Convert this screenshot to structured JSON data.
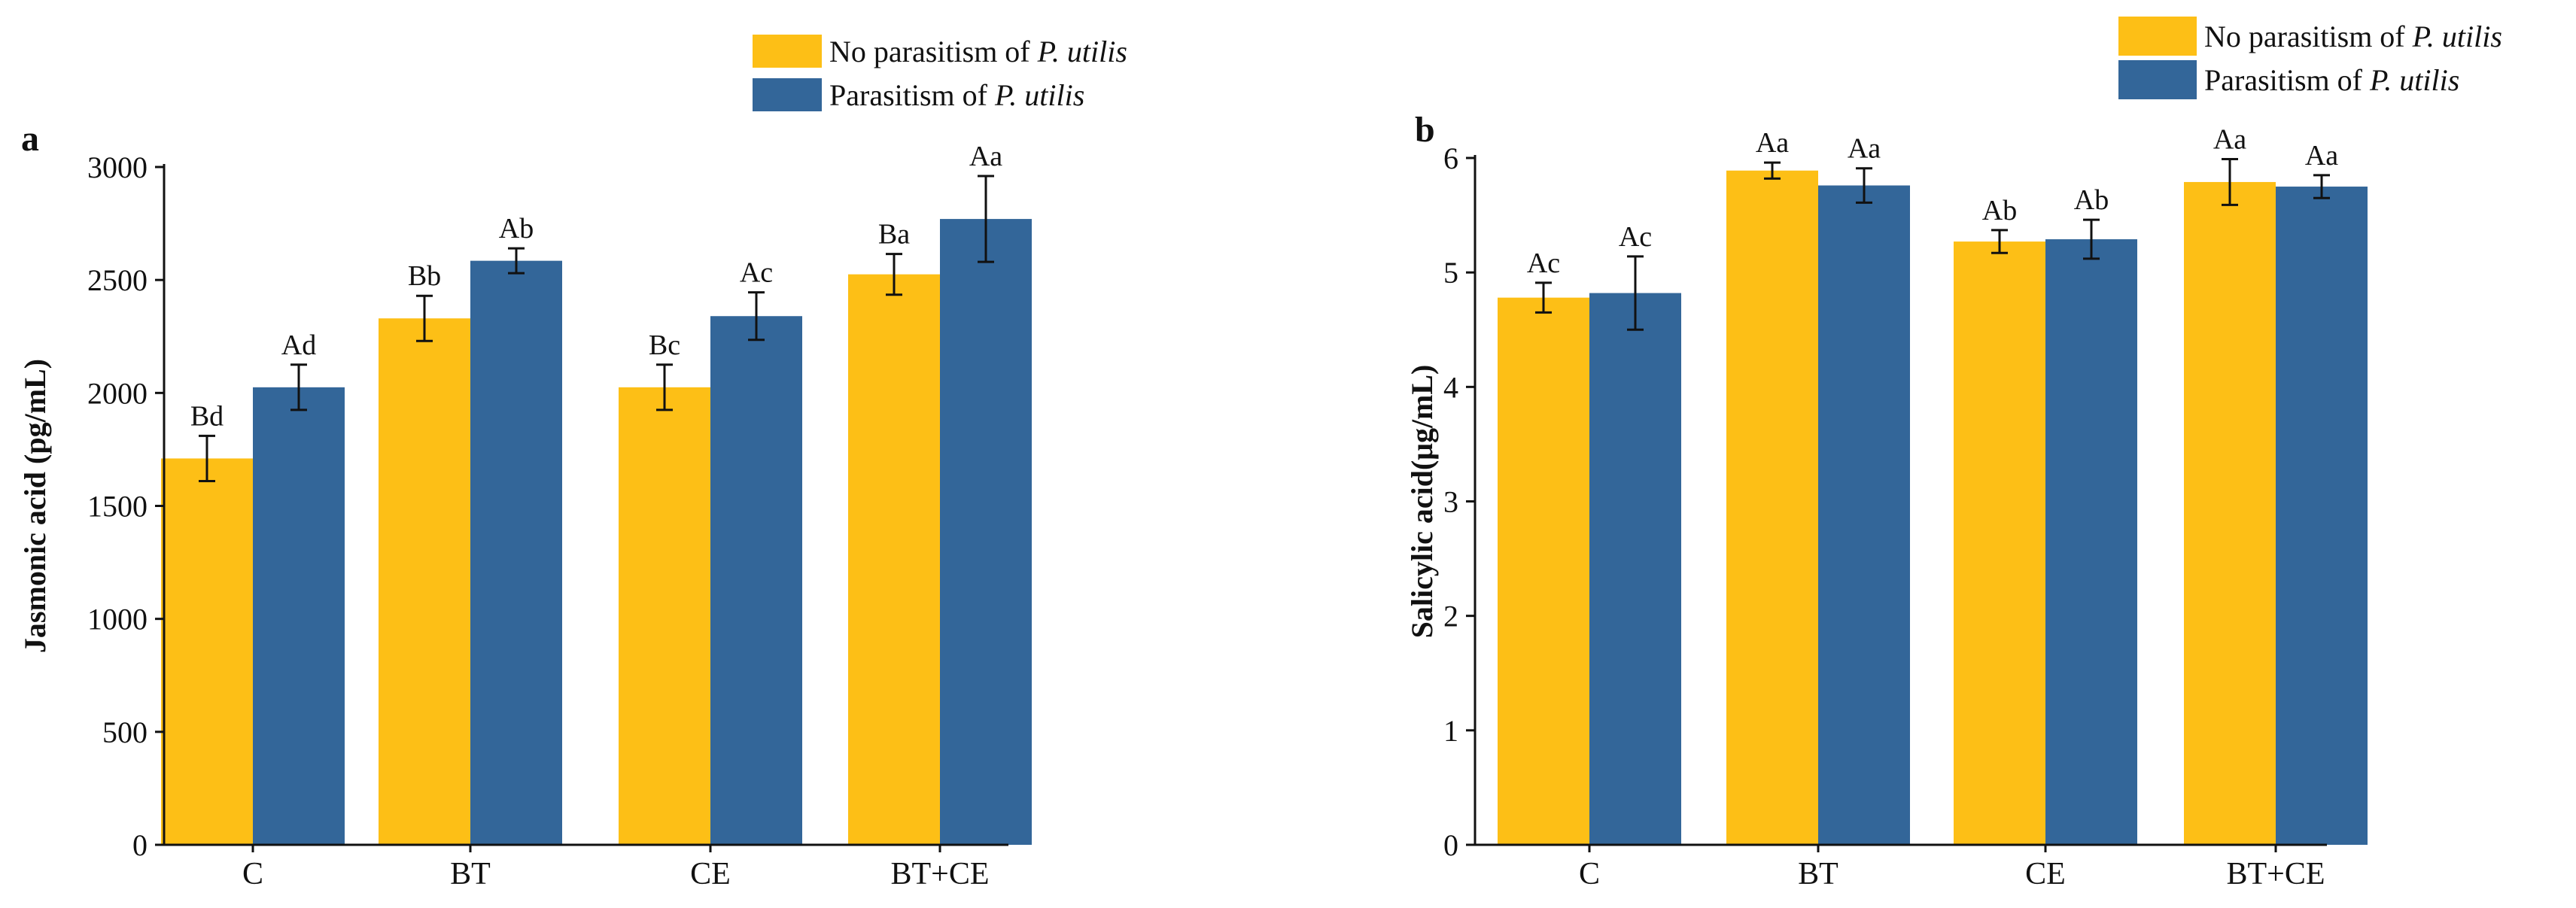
{
  "chart_data": [
    {
      "type": "bar",
      "panel_label": "a",
      "ylabel": "Jasmonic acid (pg/mL)",
      "xlabel": "",
      "categories": [
        "C",
        "BT",
        "CE",
        "BT+CE"
      ],
      "ylim": [
        0,
        3000
      ],
      "yticks": [
        "0",
        "500",
        "1000",
        "1500",
        "2000",
        "2500",
        "3000"
      ],
      "legend": {
        "position": "top-right",
        "entries": [
          {
            "prefix": "No parasitism of ",
            "italic": "P. utilis"
          },
          {
            "prefix": "Parasitism of ",
            "italic": "P. utilis"
          }
        ]
      },
      "series": [
        {
          "name": "No parasitism of P. utilis",
          "color": "#FDBF16",
          "values": [
            1710,
            2330,
            2025,
            2525
          ],
          "errors": [
            100,
            100,
            100,
            90
          ],
          "labels": [
            "Bd",
            "Bb",
            "Bc",
            "Ba"
          ]
        },
        {
          "name": "Parasitism of P. utilis",
          "color": "#336699",
          "values": [
            2025,
            2585,
            2340,
            2770
          ],
          "errors": [
            100,
            55,
            105,
            190
          ],
          "labels": [
            "Ad",
            "Ab",
            "Ac",
            "Aa"
          ]
        }
      ]
    },
    {
      "type": "bar",
      "panel_label": "b",
      "ylabel": "Salicylic acid(μg/mL)",
      "xlabel": "",
      "categories": [
        "C",
        "BT",
        "CE",
        "BT+CE"
      ],
      "ylim": [
        0,
        6
      ],
      "yticks": [
        "0",
        "1",
        "2",
        "3",
        "4",
        "5",
        "6"
      ],
      "legend": {
        "position": "top-right",
        "entries": [
          {
            "prefix": "No parasitism of ",
            "italic": "P. utilis"
          },
          {
            "prefix": "Parasitism of ",
            "italic": "P. utilis"
          }
        ]
      },
      "series": [
        {
          "name": "No parasitism of P. utilis",
          "color": "#FDBF16",
          "values": [
            4.78,
            5.89,
            5.27,
            5.79
          ],
          "errors": [
            0.13,
            0.07,
            0.1,
            0.2
          ],
          "labels": [
            "Ac",
            "Aa",
            "Ab",
            "Aa"
          ]
        },
        {
          "name": "Parasitism of P. utilis",
          "color": "#336699",
          "values": [
            4.82,
            5.76,
            5.29,
            5.75
          ],
          "errors": [
            0.32,
            0.15,
            0.17,
            0.1
          ],
          "labels": [
            "Ac",
            "Aa",
            "Ab",
            "Aa"
          ]
        }
      ]
    }
  ]
}
